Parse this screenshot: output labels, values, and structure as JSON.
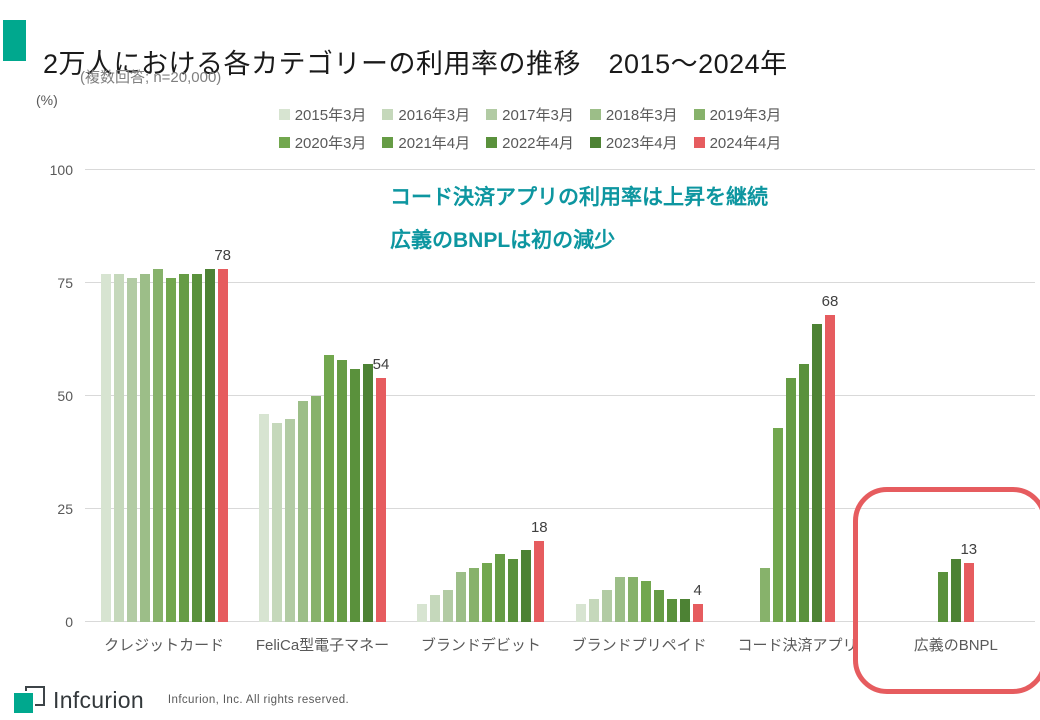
{
  "accent_color": "#00a88e",
  "chart_data": {
    "type": "bar",
    "title": "2万人における各カテゴリーの利用率の推移　2015～2024年",
    "subtitle": "(複数回答; n=20,000)",
    "unit_label": "(%)",
    "ylim": [
      0,
      100
    ],
    "yticks": [
      0,
      25,
      50,
      75,
      100
    ],
    "grid": true,
    "legend_position": "top",
    "categories": [
      "クレジットカード",
      "FeliCa型電子マネー",
      "ブランドデビット",
      "ブランドプリペイド",
      "コード決済アプリ",
      "広義のBNPL"
    ],
    "series": [
      {
        "name": "2015年3月",
        "color": "#d7e4d1",
        "values": [
          77,
          46,
          4,
          4,
          null,
          null
        ]
      },
      {
        "name": "2016年3月",
        "color": "#c5d8bb",
        "values": [
          77,
          44,
          6,
          5,
          null,
          null
        ]
      },
      {
        "name": "2017年3月",
        "color": "#b2cba4",
        "values": [
          76,
          45,
          7,
          7,
          null,
          null
        ]
      },
      {
        "name": "2018年3月",
        "color": "#9cbe88",
        "values": [
          77,
          49,
          11,
          10,
          null,
          null
        ]
      },
      {
        "name": "2019年3月",
        "color": "#87b26b",
        "values": [
          78,
          50,
          12,
          10,
          12,
          null
        ]
      },
      {
        "name": "2020年3月",
        "color": "#72a74e",
        "values": [
          76,
          59,
          13,
          9,
          43,
          null
        ]
      },
      {
        "name": "2021年4月",
        "color": "#669c45",
        "values": [
          77,
          58,
          15,
          7,
          54,
          null
        ]
      },
      {
        "name": "2022年4月",
        "color": "#5a913c",
        "values": [
          77,
          56,
          14,
          5,
          57,
          11
        ]
      },
      {
        "name": "2023年4月",
        "color": "#4d8234",
        "values": [
          78,
          57,
          16,
          5,
          66,
          14
        ]
      },
      {
        "name": "2024年4月",
        "color": "#e65c5f",
        "values": [
          78,
          54,
          18,
          4,
          68,
          13
        ]
      }
    ],
    "value_labels_series": "2024年4月",
    "value_labels": [
      78,
      54,
      18,
      4,
      68,
      13
    ],
    "annotations": [
      "コード決済アプリの利用率は上昇を継続",
      "広義のBNPLは初の減少"
    ],
    "annotation_color": "#0d96a0",
    "highlight": {
      "target_category": "広義のBNPL",
      "color": "#e65c5f"
    }
  },
  "footer": {
    "logo_text": "Infcurion",
    "logo_color": "#00a88e",
    "copyright": "Infcurion, Inc.  All rights reserved."
  }
}
